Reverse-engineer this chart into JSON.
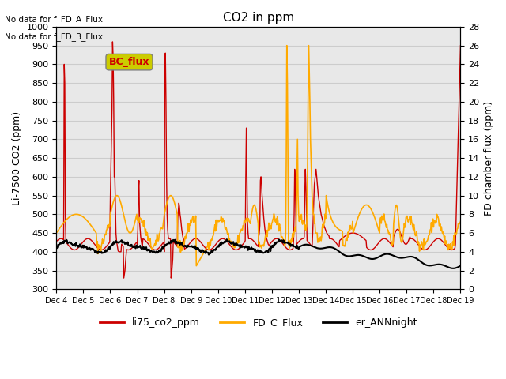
{
  "title": "CO2 in ppm",
  "ylabel_left": "Li-7500 CO2 (ppm)",
  "ylabel_right": "FD chamber flux (ppm)",
  "ylim_left": [
    300,
    1000
  ],
  "ylim_right": [
    0,
    28
  ],
  "yticks_left": [
    300,
    350,
    400,
    450,
    500,
    550,
    600,
    650,
    700,
    750,
    800,
    850,
    900,
    950,
    1000
  ],
  "yticks_right": [
    0,
    2,
    4,
    6,
    8,
    10,
    12,
    14,
    16,
    18,
    20,
    22,
    24,
    26,
    28
  ],
  "xlabel_ticks": [
    "Dec 4",
    "Dec 5",
    "Dec 6",
    "Dec 7",
    "Dec 8",
    "Dec 9",
    "Dec 10",
    "Dec 11",
    "Dec 12",
    "Dec 13",
    "Dec 14",
    "Dec 15",
    "Dec 16",
    "Dec 17",
    "Dec 18",
    "Dec 19"
  ],
  "annotations": [
    "No data for f_FD_A_Flux",
    "No data for f_FD_B_Flux"
  ],
  "bc_flux_label": "BC_flux",
  "legend_entries": [
    "li75_co2_ppm",
    "FD_C_Flux",
    "er_ANNnight"
  ],
  "colors": {
    "li75": "#cc0000",
    "fd_c": "#ffaa00",
    "er_ann": "#000000",
    "bc_flux_box": "#cccc00",
    "bc_flux_text": "#cc0000",
    "grid": "#cccccc",
    "bg": "#e8e8e8"
  },
  "linewidths": {
    "li75": 1.0,
    "fd_c": 1.2,
    "er_ann": 1.5
  }
}
